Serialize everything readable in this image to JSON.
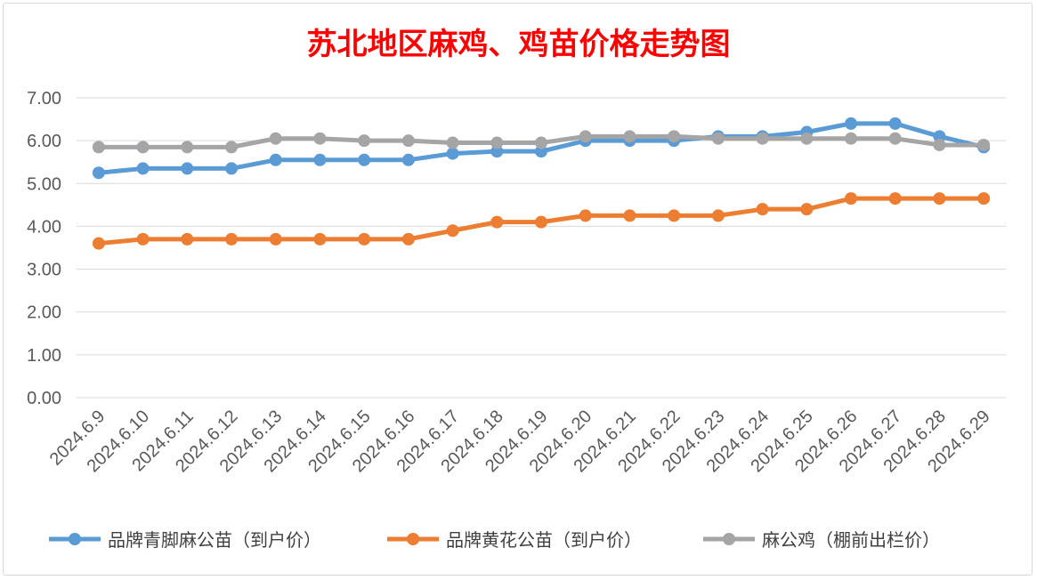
{
  "chart_data": {
    "type": "line",
    "title": "苏北地区麻鸡、鸡苗价格走势图",
    "title_color": "#ff0000",
    "xlabel": "",
    "ylabel": "",
    "ylim": [
      0,
      7
    ],
    "yticks": [
      "0.00",
      "1.00",
      "2.00",
      "3.00",
      "4.00",
      "5.00",
      "6.00",
      "7.00"
    ],
    "grid": true,
    "legend": "bottom",
    "categories": [
      "2024.6.9",
      "2024.6.10",
      "2024.6.11",
      "2024.6.12",
      "2024.6.13",
      "2024.6.14",
      "2024.6.15",
      "2024.6.16",
      "2024.6.17",
      "2024.6.18",
      "2024.6.19",
      "2024.6.20",
      "2024.6.21",
      "2024.6.22",
      "2024.6.23",
      "2024.6.24",
      "2024.6.25",
      "2024.6.26",
      "2024.6.27",
      "2024.6.28",
      "2024.6.29"
    ],
    "series": [
      {
        "name": "品牌青脚麻公苗（到户价）",
        "color": "#5b9bd5",
        "values": [
          5.25,
          5.35,
          5.35,
          5.35,
          5.55,
          5.55,
          5.55,
          5.55,
          5.7,
          5.75,
          5.75,
          6.0,
          6.0,
          6.0,
          6.1,
          6.1,
          6.2,
          6.4,
          6.4,
          6.1,
          5.85
        ]
      },
      {
        "name": "品牌黄花公苗（到户价）",
        "color": "#ed7d31",
        "values": [
          3.6,
          3.7,
          3.7,
          3.7,
          3.7,
          3.7,
          3.7,
          3.7,
          3.9,
          4.1,
          4.1,
          4.25,
          4.25,
          4.25,
          4.25,
          4.4,
          4.4,
          4.65,
          4.65,
          4.65,
          4.65
        ]
      },
      {
        "name": "麻公鸡（棚前出栏价）",
        "color": "#a5a5a5",
        "values": [
          5.85,
          5.85,
          5.85,
          5.85,
          6.05,
          6.05,
          6.0,
          6.0,
          5.95,
          5.95,
          5.95,
          6.1,
          6.1,
          6.1,
          6.05,
          6.05,
          6.05,
          6.05,
          6.05,
          5.9,
          5.9
        ]
      }
    ]
  }
}
